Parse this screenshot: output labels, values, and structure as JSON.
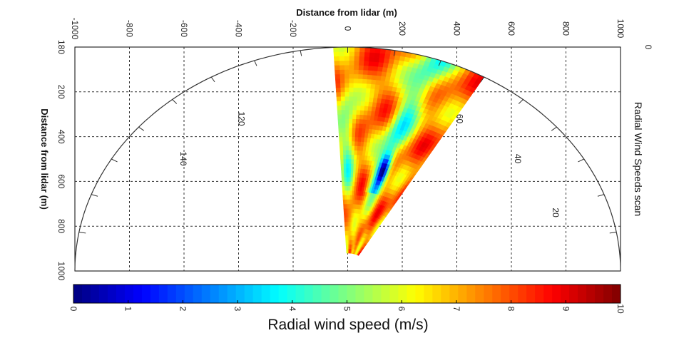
{
  "chart_data": {
    "type": "heatmap",
    "title": "Distance from lidar (m)",
    "xlabel": "Distance from lidar (m)",
    "ylabel": "Distance from lidar (m)",
    "right_label": "Radial Wind Speeds scan",
    "x_ticks": [
      -1000,
      -800,
      -600,
      -400,
      -200,
      0,
      200,
      400,
      600,
      800,
      1000
    ],
    "y_ticks": [
      0,
      200,
      400,
      600,
      800,
      1000
    ],
    "y_tick_labels": [
      "0",
      "200",
      "400",
      "600",
      "800",
      "1000"
    ],
    "xlim": [
      -1000,
      1000
    ],
    "ylim": [
      0,
      1000
    ],
    "grid": true,
    "polar": {
      "range_max_m": 1000,
      "angle_labels": [
        {
          "deg": 180,
          "text": "180"
        },
        {
          "deg": 140,
          "text": "140"
        },
        {
          "deg": 120,
          "text": "120"
        },
        {
          "deg": 60,
          "text": "60"
        },
        {
          "deg": 40,
          "text": "40"
        },
        {
          "deg": 20,
          "text": "20"
        },
        {
          "deg": 0,
          "text": "0"
        }
      ],
      "sector_min_deg": 60,
      "sector_max_deg": 93,
      "range_min_m": 80
    },
    "colorbar": {
      "label": "Radial wind speed (m/s)",
      "min": 0,
      "max": 10,
      "ticks": [
        0,
        1,
        2,
        3,
        4,
        5,
        6,
        7,
        8,
        9,
        10
      ],
      "colormap": "jet"
    },
    "scan_field": {
      "description_units": "m/s",
      "typical_speed": 7.5,
      "low_zone_speed": 1.5,
      "mid_band_speed": 4.5
    }
  }
}
